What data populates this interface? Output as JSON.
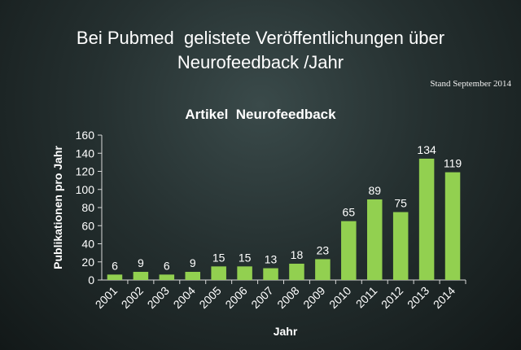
{
  "slide": {
    "title_line1": "Bei Pubmed  gelistete Veröffentlichungen über",
    "title_line2": "Neurofeedback /Jahr",
    "stand": "Stand September 2014"
  },
  "colors": {
    "bar": "#92d050",
    "text": "#ffffff",
    "axis": "#d9d9d9"
  },
  "chart_data": {
    "type": "bar",
    "title": "Artikel  Neurofeedback",
    "xlabel": "Jahr",
    "ylabel": "Publikationen pro Jahr",
    "ylim": [
      0,
      160
    ],
    "yticks": [
      0,
      20,
      40,
      60,
      80,
      100,
      120,
      140,
      160
    ],
    "grid": false,
    "categories": [
      "2001",
      "2002",
      "2003",
      "2004",
      "2005",
      "2006",
      "2007",
      "2008",
      "2009",
      "2010",
      "2011",
      "2012",
      "2013",
      "2014"
    ],
    "values": [
      6,
      9,
      6,
      9,
      15,
      15,
      13,
      18,
      23,
      65,
      89,
      75,
      134,
      119
    ]
  }
}
